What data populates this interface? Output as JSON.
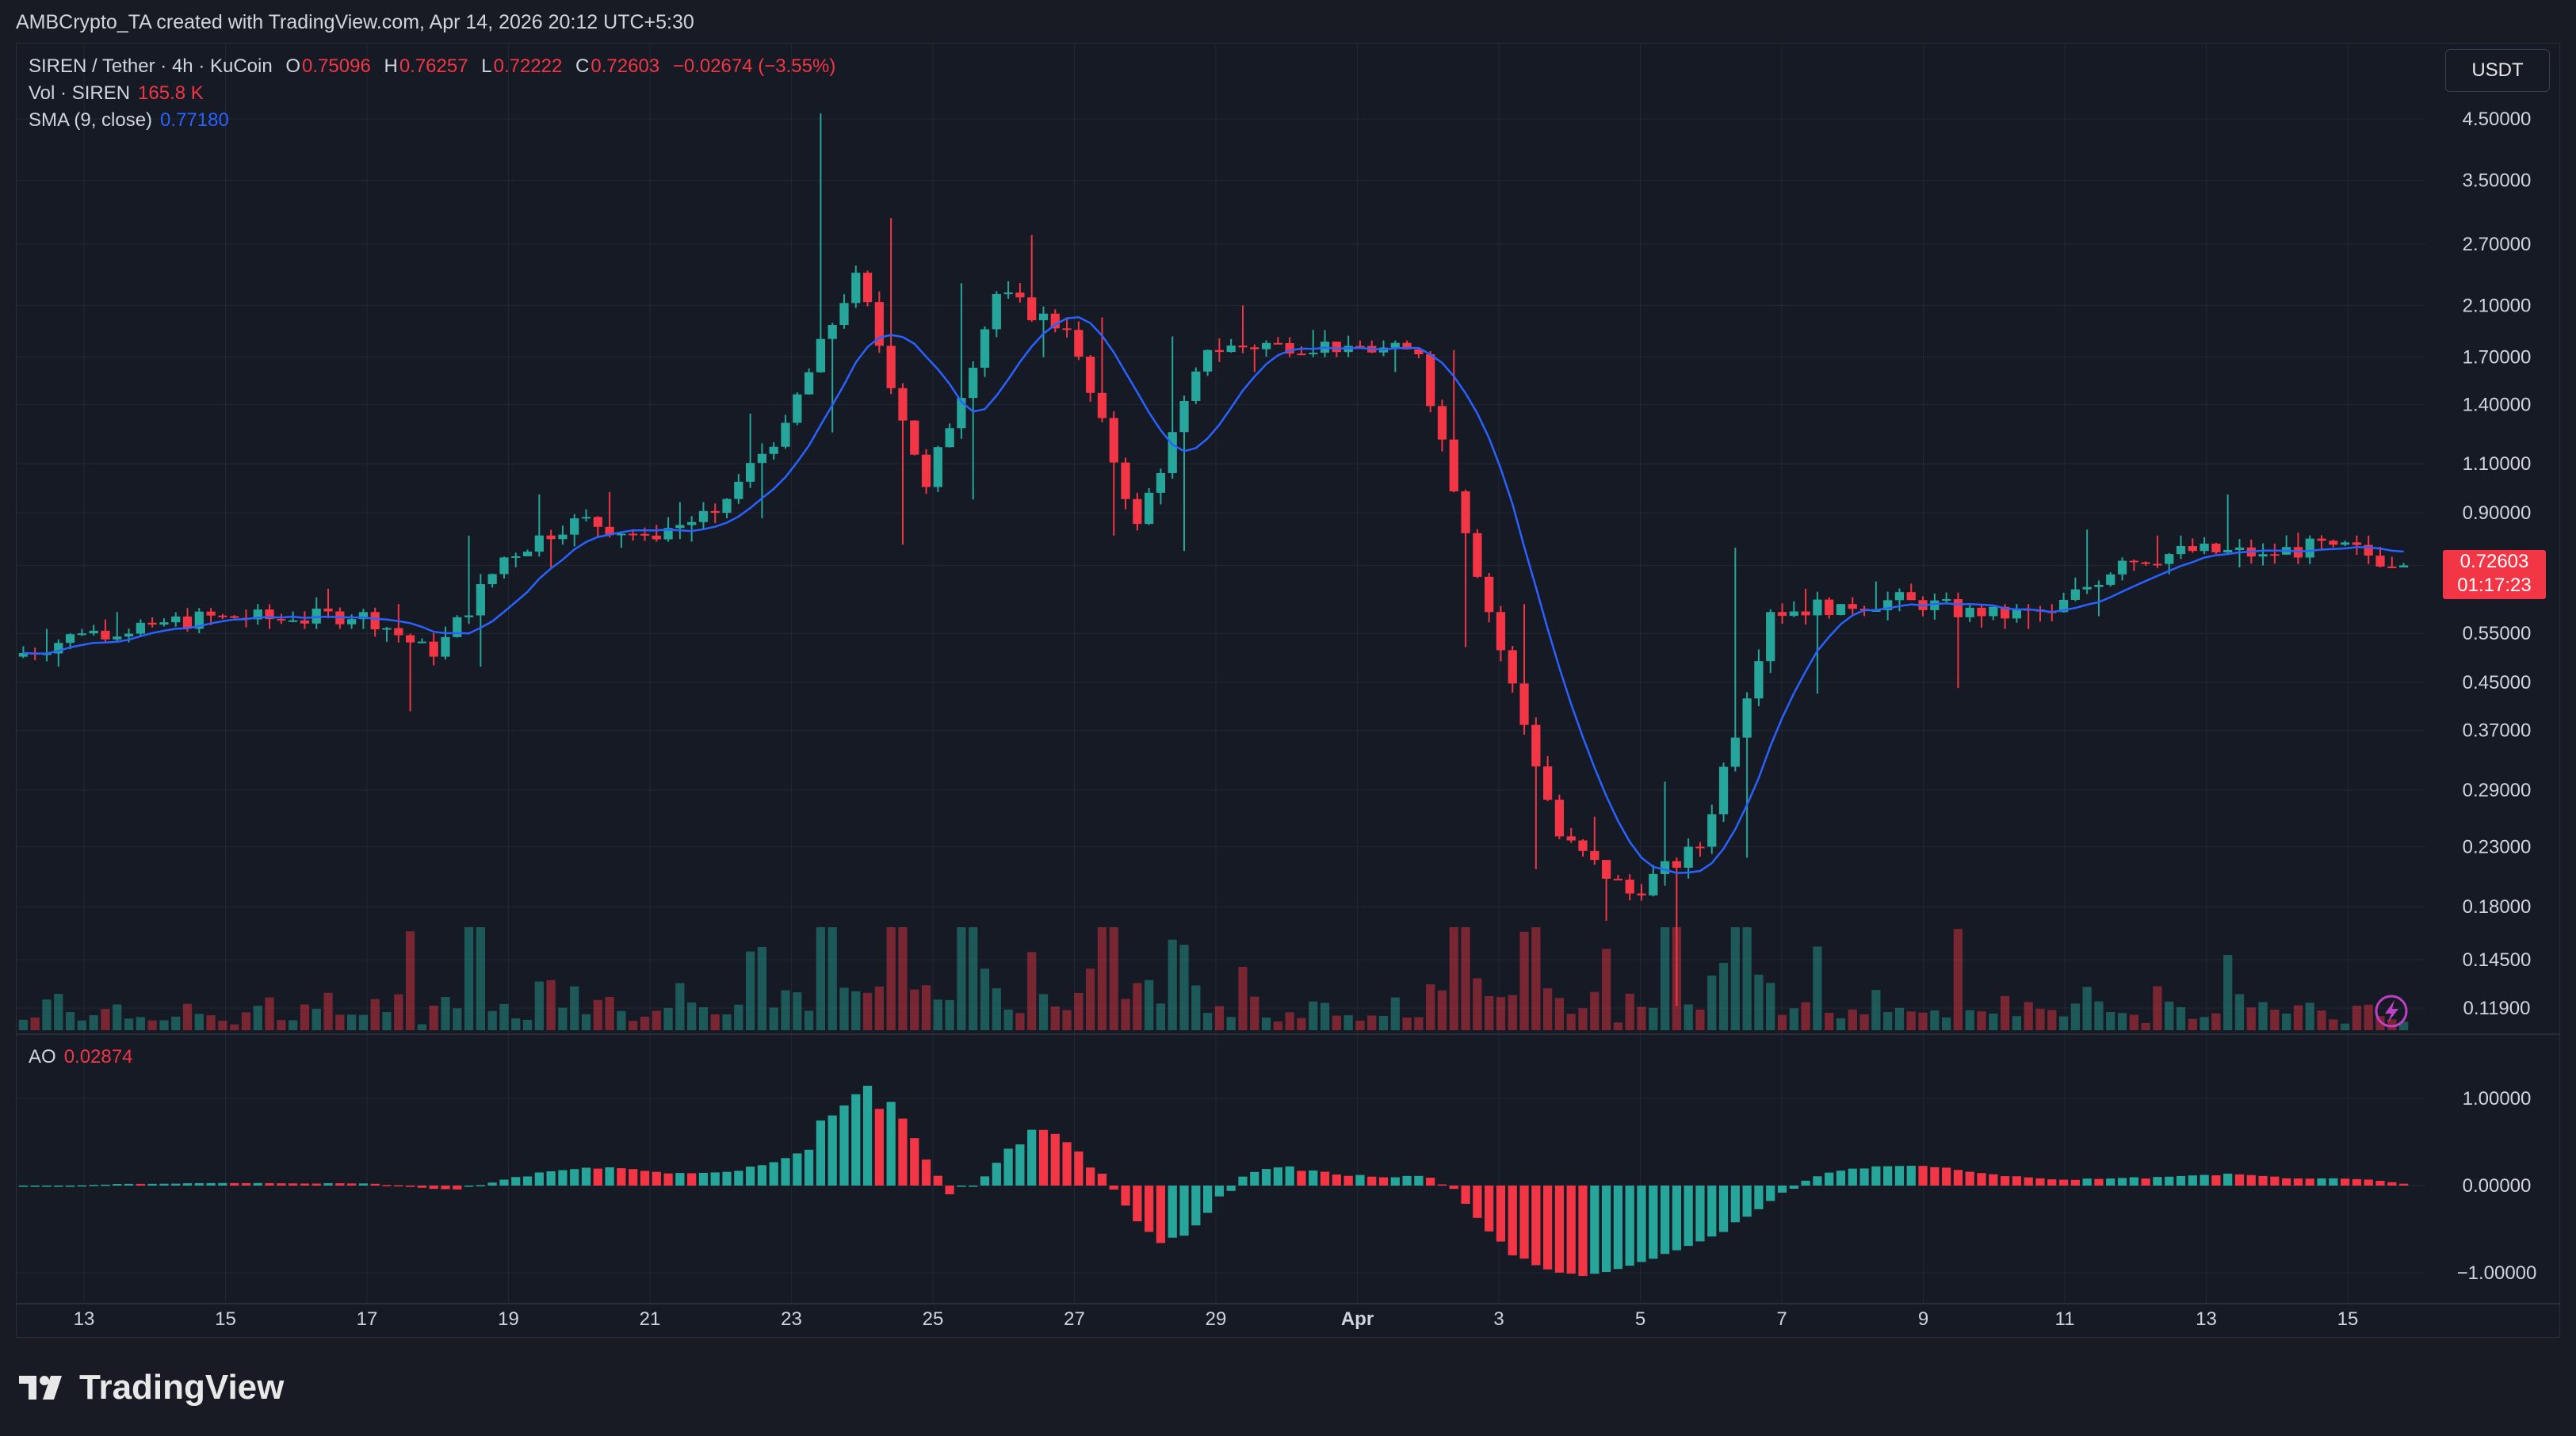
{
  "caption": "AMBCrypto_TA created with TradingView.com, Apr 14, 2026 20:12 UTC+5:30",
  "legend": {
    "symbol": "SIREN / Tether · 4h · KuCoin",
    "o_label": "O",
    "o_value": "0.75096",
    "h_label": "H",
    "h_value": "0.76257",
    "l_label": "L",
    "l_value": "0.72222",
    "c_label": "C",
    "c_value": "0.72603",
    "change": "−0.02674 (−3.55%)",
    "vol_label": "Vol · SIREN",
    "vol_value": "165.8 K",
    "sma_label": "SMA (9, close)",
    "sma_value": "0.77180",
    "ao_label": "AO",
    "ao_value": "0.02874"
  },
  "currency": "USDT",
  "price_tag": {
    "price": "0.72603",
    "countdown": "01:17:23"
  },
  "brand": "TradingView",
  "colors": {
    "up": "#26a69a",
    "down": "#f23645",
    "sma": "#2962ff",
    "background": "#161a25",
    "grid": "#232733"
  },
  "chart_data": {
    "type": "candlestick",
    "y_scale": "log",
    "price_ticks": [
      "4.50000",
      "3.50000",
      "2.70000",
      "2.10000",
      "1.70000",
      "1.40000",
      "1.10000",
      "0.90000",
      "0.72603",
      "0.55000",
      "0.45000",
      "0.37000",
      "0.29000",
      "0.23000",
      "0.18000",
      "0.14500",
      "0.11900"
    ],
    "ao_ticks": [
      "1.00000",
      "0.00000",
      "−1.00000"
    ],
    "x_ticks": [
      "13",
      "15",
      "17",
      "19",
      "21",
      "23",
      "25",
      "27",
      "29",
      "Apr",
      "3",
      "5",
      "7",
      "9",
      "11",
      "13",
      "15"
    ],
    "daily_ohlc": [
      {
        "date": "Mar 12",
        "o": 0.5,
        "h": 0.56,
        "l": 0.48,
        "c": 0.55
      },
      {
        "date": "Mar 13",
        "o": 0.55,
        "h": 0.6,
        "l": 0.53,
        "c": 0.57
      },
      {
        "date": "Mar 14",
        "o": 0.57,
        "h": 0.61,
        "l": 0.55,
        "c": 0.59
      },
      {
        "date": "Mar 15",
        "o": 0.59,
        "h": 0.62,
        "l": 0.56,
        "c": 0.58
      },
      {
        "date": "Mar 16",
        "o": 0.58,
        "h": 0.66,
        "l": 0.56,
        "c": 0.6
      },
      {
        "date": "Mar 17",
        "o": 0.6,
        "h": 0.62,
        "l": 0.4,
        "c": 0.5
      },
      {
        "date": "Mar 18",
        "o": 0.5,
        "h": 0.82,
        "l": 0.48,
        "c": 0.75
      },
      {
        "date": "Mar 19",
        "o": 0.75,
        "h": 0.97,
        "l": 0.72,
        "c": 0.88
      },
      {
        "date": "Mar 20",
        "o": 0.88,
        "h": 0.98,
        "l": 0.78,
        "c": 0.82
      },
      {
        "date": "Mar 21",
        "o": 0.82,
        "h": 0.94,
        "l": 0.8,
        "c": 0.9
      },
      {
        "date": "Mar 22",
        "o": 0.9,
        "h": 1.35,
        "l": 0.88,
        "c": 1.3
      },
      {
        "date": "Mar 23",
        "o": 1.3,
        "h": 4.6,
        "l": 1.25,
        "c": 2.4
      },
      {
        "date": "Mar 24",
        "o": 2.4,
        "h": 3.0,
        "l": 0.79,
        "c": 1.0
      },
      {
        "date": "Mar 25",
        "o": 1.0,
        "h": 2.3,
        "l": 0.95,
        "c": 2.2
      },
      {
        "date": "Mar 26",
        "o": 2.2,
        "h": 2.8,
        "l": 1.7,
        "c": 1.9
      },
      {
        "date": "Mar 27",
        "o": 1.9,
        "h": 2.0,
        "l": 0.82,
        "c": 0.86
      },
      {
        "date": "Mar 28",
        "o": 0.86,
        "h": 1.85,
        "l": 0.77,
        "c": 1.75
      },
      {
        "date": "Mar 29",
        "o": 1.75,
        "h": 2.1,
        "l": 1.6,
        "c": 1.8
      },
      {
        "date": "Mar 30",
        "o": 1.8,
        "h": 1.9,
        "l": 1.7,
        "c": 1.78
      },
      {
        "date": "Mar 31",
        "o": 1.78,
        "h": 1.82,
        "l": 1.6,
        "c": 1.72
      },
      {
        "date": "Apr 1",
        "o": 1.72,
        "h": 1.75,
        "l": 0.52,
        "c": 0.6
      },
      {
        "date": "Apr 2",
        "o": 0.6,
        "h": 0.62,
        "l": 0.21,
        "c": 0.24
      },
      {
        "date": "Apr 3",
        "o": 0.24,
        "h": 0.26,
        "l": 0.17,
        "c": 0.19
      },
      {
        "date": "Apr 4",
        "o": 0.19,
        "h": 0.3,
        "l": 0.12,
        "c": 0.23
      },
      {
        "date": "Apr 5",
        "o": 0.23,
        "h": 0.78,
        "l": 0.22,
        "c": 0.6
      },
      {
        "date": "Apr 6",
        "o": 0.6,
        "h": 0.66,
        "l": 0.43,
        "c": 0.62
      },
      {
        "date": "Apr 7",
        "o": 0.62,
        "h": 0.68,
        "l": 0.58,
        "c": 0.63
      },
      {
        "date": "Apr 8",
        "o": 0.63,
        "h": 0.65,
        "l": 0.44,
        "c": 0.59
      },
      {
        "date": "Apr 9",
        "o": 0.59,
        "h": 0.62,
        "l": 0.56,
        "c": 0.6
      },
      {
        "date": "Apr 10",
        "o": 0.6,
        "h": 0.84,
        "l": 0.59,
        "c": 0.74
      },
      {
        "date": "Apr 11",
        "o": 0.74,
        "h": 0.82,
        "l": 0.7,
        "c": 0.77
      },
      {
        "date": "Apr 12",
        "o": 0.77,
        "h": 0.97,
        "l": 0.72,
        "c": 0.76
      },
      {
        "date": "Apr 13",
        "o": 0.76,
        "h": 0.83,
        "l": 0.73,
        "c": 0.79
      },
      {
        "date": "Apr 14",
        "o": 0.79,
        "h": 0.82,
        "l": 0.72,
        "c": 0.726
      }
    ]
  }
}
